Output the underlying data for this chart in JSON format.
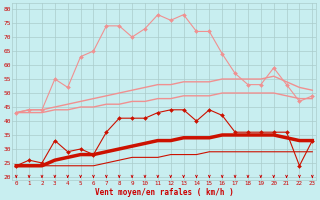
{
  "x": [
    0,
    1,
    2,
    3,
    4,
    5,
    6,
    7,
    8,
    9,
    10,
    11,
    12,
    13,
    14,
    15,
    16,
    17,
    18,
    19,
    20,
    21,
    22,
    23
  ],
  "series": [
    {
      "name": "rafales_max",
      "color": "#f09090",
      "lw": 0.8,
      "marker": "D",
      "ms": 2.0,
      "zorder": 3,
      "values": [
        43,
        44,
        44,
        55,
        52,
        63,
        65,
        74,
        74,
        70,
        73,
        78,
        76,
        78,
        72,
        72,
        64,
        57,
        53,
        53,
        59,
        53,
        47,
        49
      ]
    },
    {
      "name": "rafales_mean_high",
      "color": "#f09090",
      "lw": 1.0,
      "marker": null,
      "ms": 0,
      "zorder": 2,
      "values": [
        43,
        44,
        44,
        45,
        46,
        47,
        48,
        49,
        50,
        51,
        52,
        53,
        53,
        54,
        54,
        54,
        55,
        55,
        55,
        55,
        56,
        54,
        52,
        51
      ]
    },
    {
      "name": "rafales_mean_low",
      "color": "#f09090",
      "lw": 1.0,
      "marker": null,
      "ms": 0,
      "zorder": 2,
      "values": [
        43,
        43,
        43,
        44,
        44,
        45,
        45,
        46,
        46,
        47,
        47,
        48,
        48,
        49,
        49,
        49,
        50,
        50,
        50,
        50,
        50,
        49,
        48,
        48
      ]
    },
    {
      "name": "vent_max",
      "color": "#cc1100",
      "lw": 0.8,
      "marker": "D",
      "ms": 2.0,
      "zorder": 4,
      "values": [
        24,
        26,
        25,
        33,
        29,
        30,
        28,
        36,
        41,
        41,
        41,
        43,
        44,
        44,
        40,
        44,
        42,
        36,
        36,
        36,
        36,
        36,
        24,
        33
      ]
    },
    {
      "name": "vent_mean",
      "color": "#cc1100",
      "lw": 2.5,
      "marker": null,
      "ms": 0,
      "zorder": 3,
      "values": [
        24,
        24,
        24,
        26,
        27,
        28,
        28,
        29,
        30,
        31,
        32,
        33,
        33,
        34,
        34,
        34,
        35,
        35,
        35,
        35,
        35,
        34,
        33,
        33
      ]
    },
    {
      "name": "vent_min",
      "color": "#cc1100",
      "lw": 0.8,
      "marker": null,
      "ms": 0,
      "zorder": 2,
      "values": [
        24,
        24,
        24,
        24,
        24,
        24,
        24,
        25,
        26,
        27,
        27,
        27,
        28,
        28,
        28,
        29,
        29,
        29,
        29,
        29,
        29,
        29,
        29,
        29
      ]
    }
  ],
  "xlabel": "Vent moyen/en rafales ( km/h )",
  "ylabel_ticks": [
    20,
    25,
    30,
    35,
    40,
    45,
    50,
    55,
    60,
    65,
    70,
    75,
    80
  ],
  "ylim": [
    19,
    82
  ],
  "xlim": [
    -0.3,
    23.3
  ],
  "bg_color": "#c8eef0",
  "grid_color": "#aacccc",
  "wind_arrow_color": "#cc0000"
}
